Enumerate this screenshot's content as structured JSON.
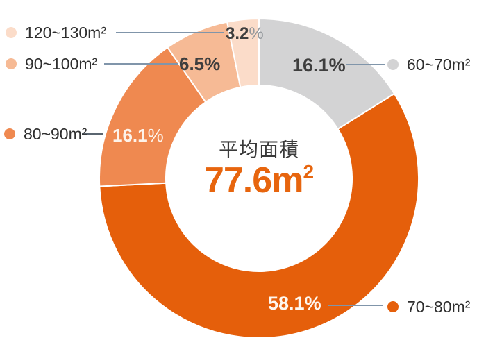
{
  "chart_data": {
    "type": "pie",
    "subtype": "donut",
    "direction": "clockwise",
    "start_angle_deg": 0,
    "center_label": "平均面積",
    "center_value": "77.6",
    "center_unit": "m",
    "center_unit_sup": "2",
    "separator_color": "#ffffff",
    "connector_color": "#8095aa",
    "segments": [
      {
        "label": "60~70m²",
        "value": 16.1,
        "pct": "16.1",
        "pct_suffix": "%",
        "color": "#d3d3d4"
      },
      {
        "label": "70~80m²",
        "value": 58.1,
        "pct": "58.1",
        "pct_suffix": "%",
        "color": "#e55f0b"
      },
      {
        "label": "80~90m²",
        "value": 16.1,
        "pct": "16.1",
        "pct_suffix": "%",
        "color": "#ef8950"
      },
      {
        "label": "90~100m²",
        "value": 6.5,
        "pct": "6.5",
        "pct_suffix": "%",
        "color": "#f6ba95"
      },
      {
        "label": "120~130m²",
        "value": 3.2,
        "pct": "3.2",
        "pct_suffix": "%",
        "color": "#fbdcc9"
      }
    ]
  }
}
